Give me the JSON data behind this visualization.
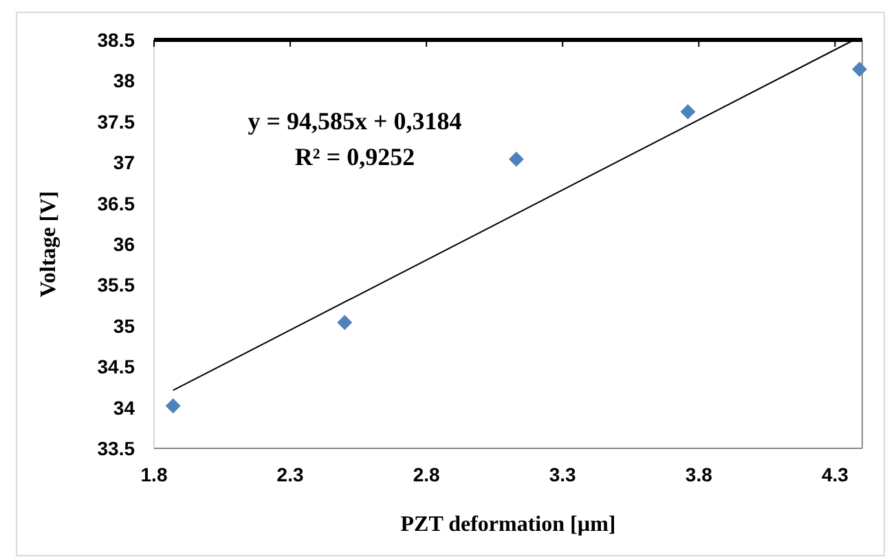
{
  "chart_data": {
    "type": "scatter",
    "xlabel": "PZT deformation [µm]",
    "ylabel": "Voltage [V]",
    "x": [
      1.87,
      2.5,
      3.13,
      3.76,
      4.39
    ],
    "series": [
      {
        "color": "#4f81bd",
        "marker": "diamond",
        "values": [
          34.02,
          35.04,
          37.04,
          37.62,
          38.14
        ]
      },
      {
        "type": "line",
        "color": "#000000",
        "x": [
          1.87,
          4.37
        ],
        "values": [
          34.21,
          38.5
        ]
      }
    ],
    "xlim": [
      1.8,
      4.4
    ],
    "xticks": [
      1.8,
      2.3,
      2.8,
      3.3,
      3.8,
      4.3
    ],
    "ylim": [
      33.5,
      38.5
    ],
    "yticks": [
      33.5,
      34,
      34.5,
      35,
      35.5,
      36,
      36.5,
      37,
      37.5,
      38,
      38.5
    ],
    "annotations": [
      "y = 94,585x + 0,3184",
      "R² = 0,9252"
    ],
    "grid": false
  }
}
